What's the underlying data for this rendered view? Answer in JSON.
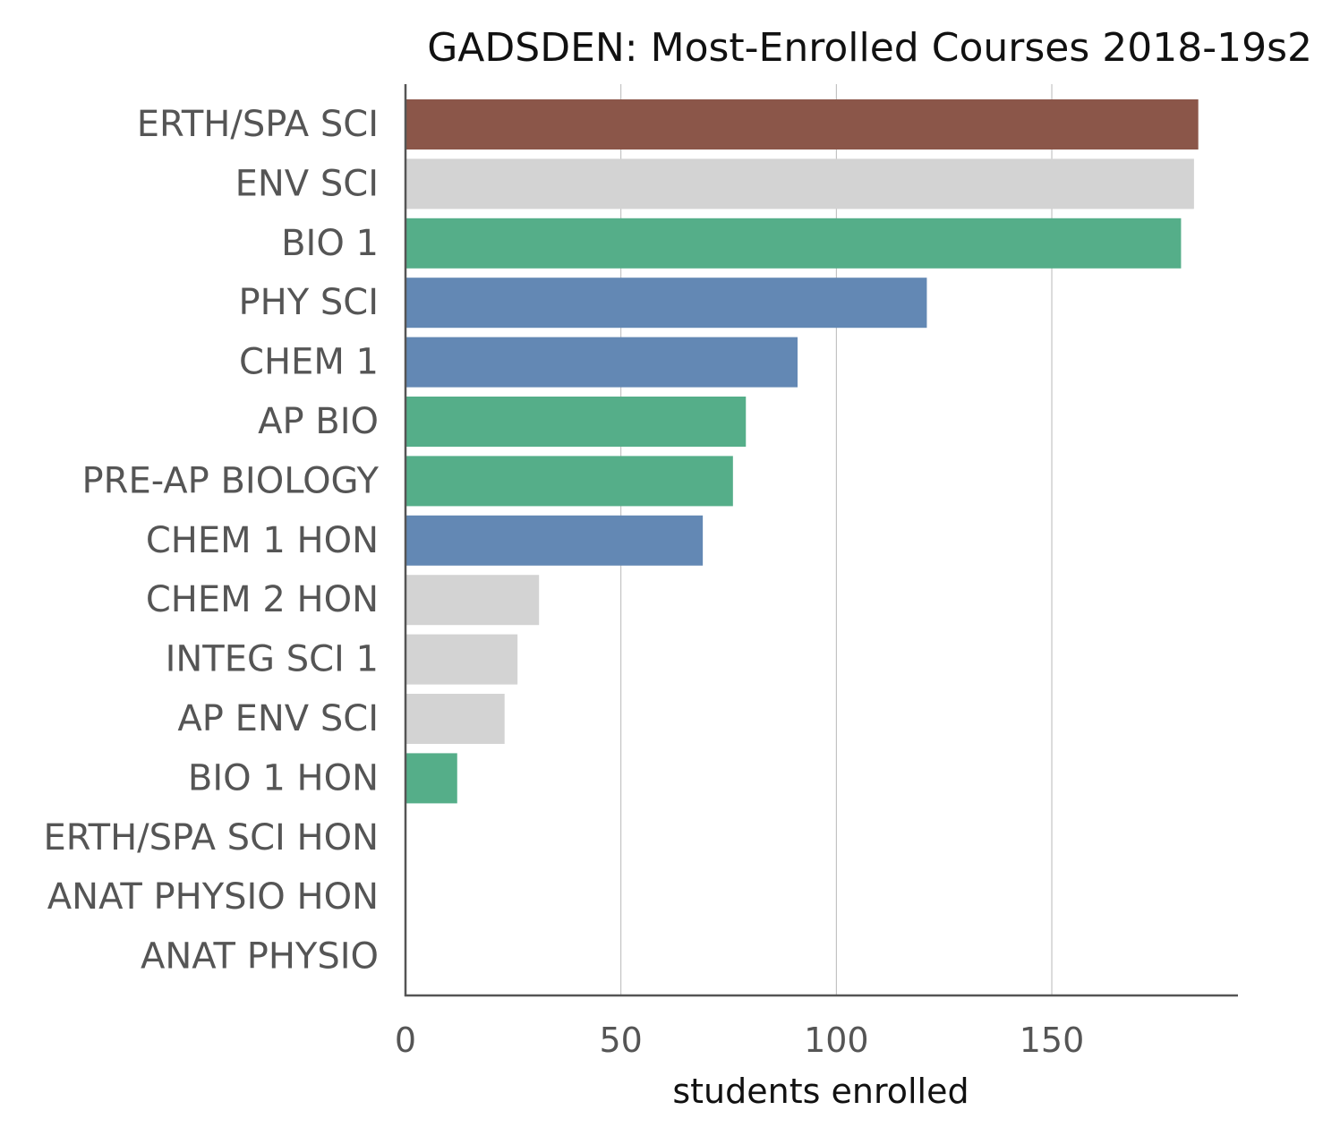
{
  "chart_data": {
    "type": "bar",
    "orientation": "horizontal",
    "title": "GADSDEN: Most-Enrolled Courses 2018-19s2",
    "xlabel": "students enrolled",
    "ylabel": "",
    "xlim": [
      0,
      193
    ],
    "xticks": [
      0,
      50,
      100,
      150
    ],
    "grid": "vertical",
    "categories": [
      "ERTH/SPA SCI",
      "ENV SCI",
      "BIO 1",
      "PHY SCI",
      "CHEM 1",
      "AP BIO",
      "PRE-AP BIOLOGY",
      "CHEM 1 HON",
      "CHEM 2 HON",
      "INTEG SCI 1",
      "AP ENV SCI",
      "BIO 1 HON",
      "ERTH/SPA SCI HON",
      "ANAT PHYSIO HON",
      "ANAT PHYSIO"
    ],
    "values": [
      184,
      183,
      180,
      121,
      91,
      79,
      76,
      69,
      31,
      26,
      23,
      12,
      0,
      0,
      0
    ],
    "colors": [
      "#8b5649",
      "#d3d3d3",
      "#55ae89",
      "#6388b4",
      "#6388b4",
      "#55ae89",
      "#55ae89",
      "#6388b4",
      "#d3d3d3",
      "#d3d3d3",
      "#d3d3d3",
      "#55ae89",
      "#d3d3d3",
      "#d3d3d3",
      "#d3d3d3"
    ]
  }
}
